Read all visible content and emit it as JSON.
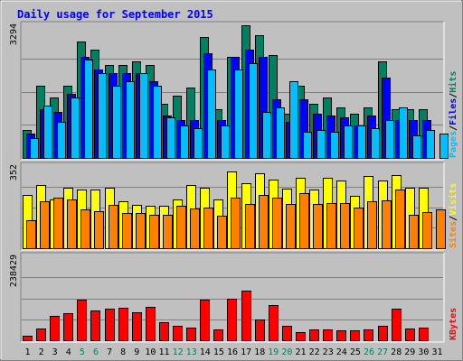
{
  "chart_data": {
    "type": "bar",
    "title": "Daily usage for September 2015",
    "categories": [
      "1",
      "2",
      "3",
      "4",
      "5",
      "6",
      "7",
      "8",
      "9",
      "10",
      "11",
      "12",
      "13",
      "14",
      "15",
      "16",
      "17",
      "18",
      "19",
      "20",
      "21",
      "22",
      "23",
      "24",
      "25",
      "26",
      "27",
      "28",
      "29",
      "30",
      "31"
    ],
    "weekend_days": [
      5,
      6,
      12,
      13,
      19,
      20,
      26,
      27
    ],
    "panels": [
      {
        "id": "hits",
        "max_label": "3294",
        "ylim": [
          0,
          3294
        ],
        "right_labels": [
          {
            "text": "Pages",
            "color": "#00bfff"
          },
          {
            "text": "Files",
            "color": "#0000ff"
          },
          {
            "text": "Hits",
            "color": "#008060"
          }
        ],
        "series": [
          {
            "name": "Hits",
            "color": "#008060",
            "values": [
              700,
              1800,
              1500,
              1800,
              2900,
              2700,
              2300,
              2300,
              2400,
              2300,
              1350,
              1550,
              1750,
              3000,
              1200,
              2500,
              3300,
              3050,
              2550,
              1100,
              1800,
              1350,
              1500,
              1250,
              1100,
              1250,
              2400,
              1200,
              1200,
              1200,
              null
            ]
          },
          {
            "name": "Files",
            "color": "#0000ff",
            "values": [
              600,
              1200,
              1150,
              1600,
              2500,
              2200,
              2100,
              2100,
              2100,
              1900,
              1050,
              950,
              950,
              2600,
              950,
              2500,
              2700,
              2500,
              1450,
              900,
              1450,
              1100,
              1050,
              1000,
              800,
              1050,
              2000,
              950,
              950,
              950,
              null
            ]
          },
          {
            "name": "Pages",
            "color": "#00bfff",
            "values": [
              500,
              1300,
              900,
              1500,
              2450,
              2100,
              1800,
              1900,
              2100,
              1800,
              1000,
              800,
              750,
              2200,
              800,
              2200,
              2350,
              1150,
              1250,
              1900,
              650,
              700,
              650,
              800,
              800,
              750,
              950,
              1250,
              550,
              700,
              600
            ]
          }
        ]
      },
      {
        "id": "visits",
        "max_label": "352",
        "ylim": [
          0,
          352
        ],
        "right_labels": [
          {
            "text": "Sites",
            "color": "#ff8000"
          },
          {
            "text": "Visits",
            "color": "#ffff00"
          }
        ],
        "series": [
          {
            "name": "Visits",
            "color": "#ffff00",
            "values": [
              230,
              270,
              210,
              260,
              250,
              250,
              260,
              200,
              185,
              180,
              180,
              210,
              270,
              260,
              210,
              330,
              280,
              320,
              295,
              255,
              300,
              250,
              300,
              290,
              225,
              310,
              290,
              315,
              260,
              260,
              null
            ]
          },
          {
            "name": "Sites",
            "color": "#ff8000",
            "values": [
              120,
              200,
              215,
              210,
              165,
              160,
              185,
              150,
              150,
              145,
              145,
              180,
              170,
              175,
              140,
              215,
              190,
              230,
              215,
              190,
              235,
              190,
              195,
              195,
              175,
              200,
              205,
              250,
              145,
              155,
              165
            ]
          }
        ]
      },
      {
        "id": "kbytes",
        "max_label": "238429",
        "ylim": [
          0,
          238429
        ],
        "right_labels": [
          {
            "text": "KBytes",
            "color": "#ff0000"
          }
        ],
        "series": [
          {
            "name": "KBytes",
            "color": "#ff0000",
            "values": [
              14000,
              34000,
              68000,
              78000,
              116000,
              84000,
              90000,
              92000,
              80000,
              95000,
              52000,
              40000,
              37000,
              115000,
              30000,
              118000,
              142000,
              58000,
              101000,
              40000,
              24000,
              32000,
              32000,
              27000,
              27000,
              32000,
              42000,
              90000,
              34000,
              35000,
              null
            ]
          }
        ]
      }
    ]
  }
}
